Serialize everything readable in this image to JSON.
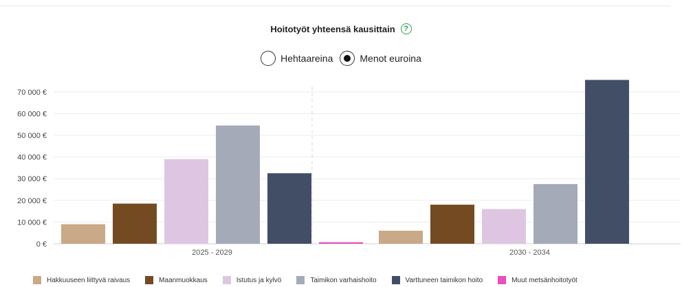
{
  "header": {
    "title": "Hoitotyöt yhteensä kausittain",
    "help_icon": "question-mark-icon"
  },
  "toggle": {
    "options": [
      {
        "label": "Hehtaareina",
        "selected": false
      },
      {
        "label": "Menot euroina",
        "selected": true
      }
    ]
  },
  "chart_data": {
    "type": "bar",
    "categories": [
      "2025 - 2029",
      "2030 - 2034"
    ],
    "y_ticks": [
      0,
      10000,
      20000,
      30000,
      40000,
      50000,
      60000,
      70000
    ],
    "y_tick_labels": [
      "0 €",
      "10 000 €",
      "20 000 €",
      "30 000 €",
      "40 000 €",
      "50 000 €",
      "60 000 €",
      "70 000 €"
    ],
    "ylim": [
      0,
      75000
    ],
    "grid": true,
    "legend_position": "bottom",
    "series": [
      {
        "name": "Hakkuuseen liittyvä raivaus",
        "color": "#c9a987",
        "values": [
          9000,
          6000
        ]
      },
      {
        "name": "Maanmuokkaus",
        "color": "#744a22",
        "values": [
          18500,
          18000
        ]
      },
      {
        "name": "Istutus ja kylvö",
        "color": "#dec6e3",
        "values": [
          39000,
          16000
        ]
      },
      {
        "name": "Taimikon varhaishoito",
        "color": "#a4aab7",
        "values": [
          54500,
          27500
        ]
      },
      {
        "name": "Varttuneen taimikon hoito",
        "color": "#414e66",
        "values": [
          32500,
          75500
        ]
      },
      {
        "name": "Muut metsänhoitotyöt",
        "color": "#e84fc0",
        "values": [
          700,
          0
        ]
      }
    ]
  }
}
